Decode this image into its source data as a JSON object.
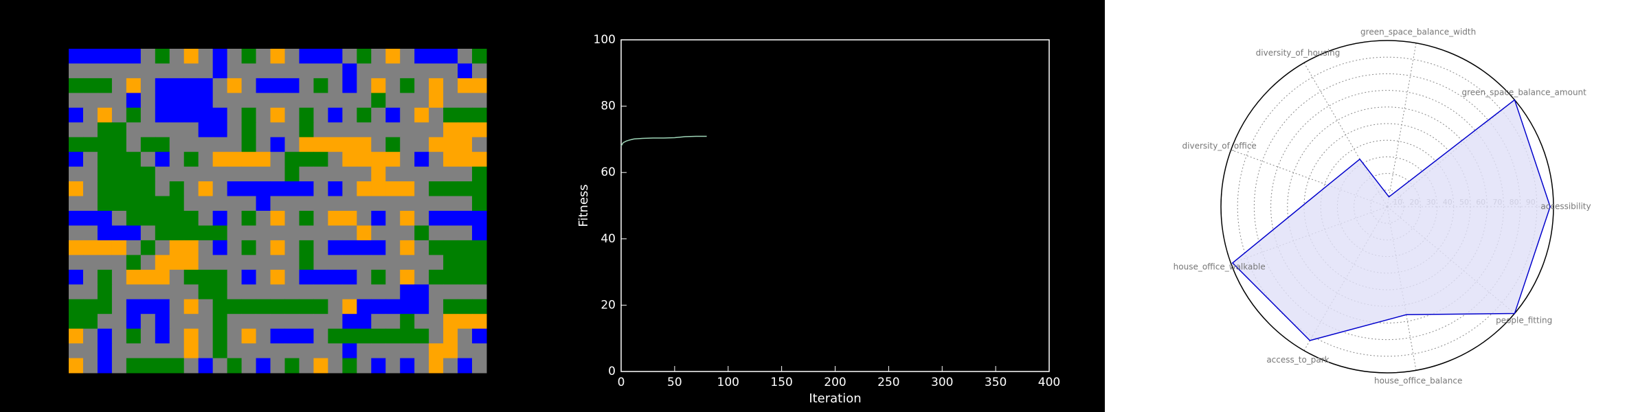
{
  "chart_data": [
    {
      "type": "line",
      "x_label": "Iteration",
      "y_label": "Fitness",
      "x": [
        0,
        2,
        5,
        8,
        12,
        20,
        30,
        40,
        50,
        60,
        70,
        80
      ],
      "values": [
        68,
        69,
        69.5,
        69.8,
        70.1,
        70.3,
        70.4,
        70.4,
        70.5,
        70.8,
        70.9,
        70.9
      ],
      "color": "#9fd6b8",
      "xlim": [
        0,
        400
      ],
      "xticks": [
        0,
        50,
        100,
        150,
        200,
        250,
        300,
        350,
        400
      ],
      "ylim": [
        0,
        100
      ],
      "yticks": [
        0,
        20,
        40,
        60,
        80,
        100
      ]
    },
    {
      "type": "radar",
      "categories": [
        "accessibility",
        "green_space_balance_amount",
        "green_space_balance_width",
        "diversity_of_housing",
        "diversity_of_office",
        "house_office_walkable",
        "access_to_park",
        "house_office_balance",
        "people_fitting"
      ],
      "values": [
        98,
        100,
        6,
        33,
        38,
        99,
        93,
        66,
        100
      ],
      "color": "#0000cc",
      "fill": "#e0e0f8",
      "rlim": [
        0,
        100
      ],
      "rticks": [
        10,
        20,
        30,
        40,
        50,
        60,
        70,
        80,
        90
      ]
    }
  ]
}
